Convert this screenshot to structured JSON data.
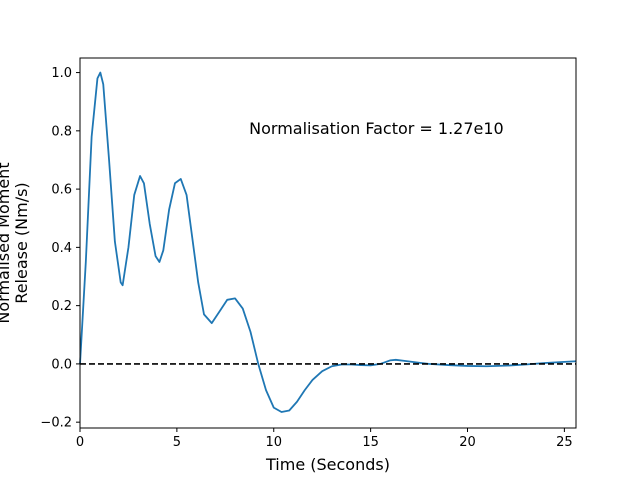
{
  "chart_data": {
    "type": "line",
    "title": "",
    "xlabel": "Time (Seconds)",
    "ylabel_lines": [
      "Normalised Moment",
      "Release (Nm/s)"
    ],
    "xlim": [
      0,
      25.6
    ],
    "ylim": [
      -0.22,
      1.05
    ],
    "xticks": [
      0,
      5,
      10,
      15,
      20,
      25
    ],
    "xtick_labels": [
      "0",
      "5",
      "10",
      "15",
      "20",
      "25"
    ],
    "yticks": [
      -0.2,
      0.0,
      0.2,
      0.4,
      0.6,
      0.8,
      1.0
    ],
    "ytick_labels": [
      "−0.2",
      "0.0",
      "0.2",
      "0.4",
      "0.6",
      "0.8",
      "1.0"
    ],
    "grid": false,
    "annotation": {
      "text": "Normalisation Factor = 1.27e10",
      "x": 15.3,
      "y": 0.81
    },
    "reference_line": {
      "y": 0.0,
      "style": "dashed",
      "color": "#000000"
    },
    "series": [
      {
        "color": "#1f77b4",
        "x": [
          0,
          0.3,
          0.6,
          0.9,
          1.05,
          1.2,
          1.5,
          1.8,
          2.1,
          2.2,
          2.5,
          2.8,
          3.1,
          3.3,
          3.6,
          3.9,
          4.1,
          4.3,
          4.6,
          4.9,
          5.2,
          5.5,
          5.8,
          6.1,
          6.4,
          6.8,
          7.2,
          7.6,
          8.0,
          8.4,
          8.8,
          9.2,
          9.6,
          10.0,
          10.4,
          10.8,
          11.2,
          11.6,
          12.0,
          12.5,
          13.0,
          13.5,
          14.0,
          14.5,
          15.0,
          15.5,
          16.0,
          16.3,
          16.8,
          17.5,
          18.0,
          19.0,
          20.0,
          21.0,
          22.0,
          23.0,
          24.0,
          25.0,
          25.6
        ],
        "y": [
          0.0,
          0.35,
          0.78,
          0.98,
          1.0,
          0.96,
          0.7,
          0.42,
          0.28,
          0.27,
          0.4,
          0.58,
          0.645,
          0.62,
          0.48,
          0.37,
          0.35,
          0.39,
          0.53,
          0.62,
          0.635,
          0.58,
          0.43,
          0.28,
          0.17,
          0.14,
          0.18,
          0.22,
          0.225,
          0.19,
          0.11,
          0.0,
          -0.09,
          -0.15,
          -0.165,
          -0.16,
          -0.13,
          -0.09,
          -0.055,
          -0.025,
          -0.008,
          -0.002,
          -0.002,
          -0.004,
          -0.005,
          0.0,
          0.012,
          0.014,
          0.01,
          0.004,
          0.0,
          -0.004,
          -0.007,
          -0.008,
          -0.006,
          -0.002,
          0.003,
          0.007,
          0.009
        ]
      }
    ]
  }
}
